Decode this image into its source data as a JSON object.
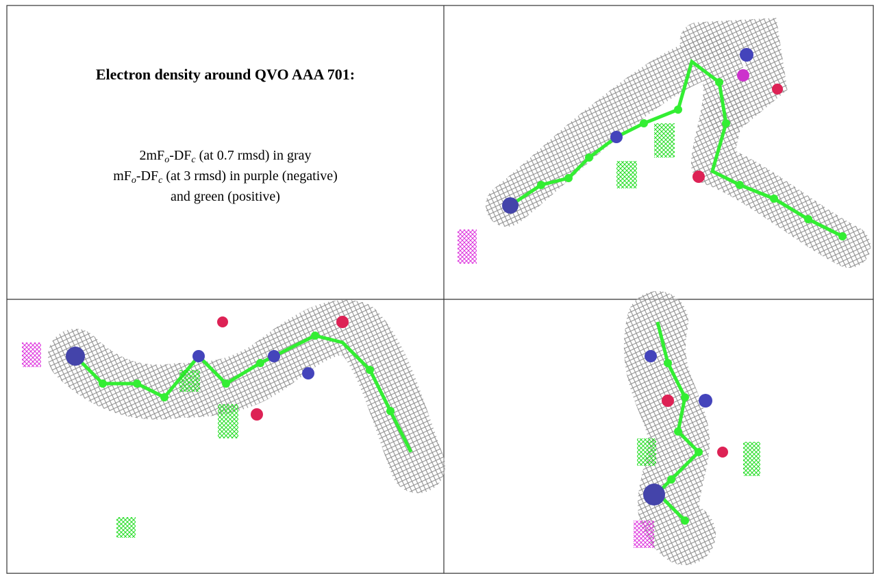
{
  "title": "Electron density around QVO AAA 701:",
  "lines": [
    [
      {
        "text": "2mF"
      },
      {
        "sub": "o"
      },
      {
        "text": "-DF"
      },
      {
        "sub": "c"
      },
      {
        "text": " (at 0.7 rmsd) in gray"
      }
    ],
    [
      {
        "text": "mF"
      },
      {
        "sub": "o"
      },
      {
        "text": "-DF"
      },
      {
        "sub": "c"
      },
      {
        "text": " (at 3 rmsd) in purple (negative)"
      }
    ],
    [
      {
        "text": "and green (positive)"
      }
    ]
  ]
}
